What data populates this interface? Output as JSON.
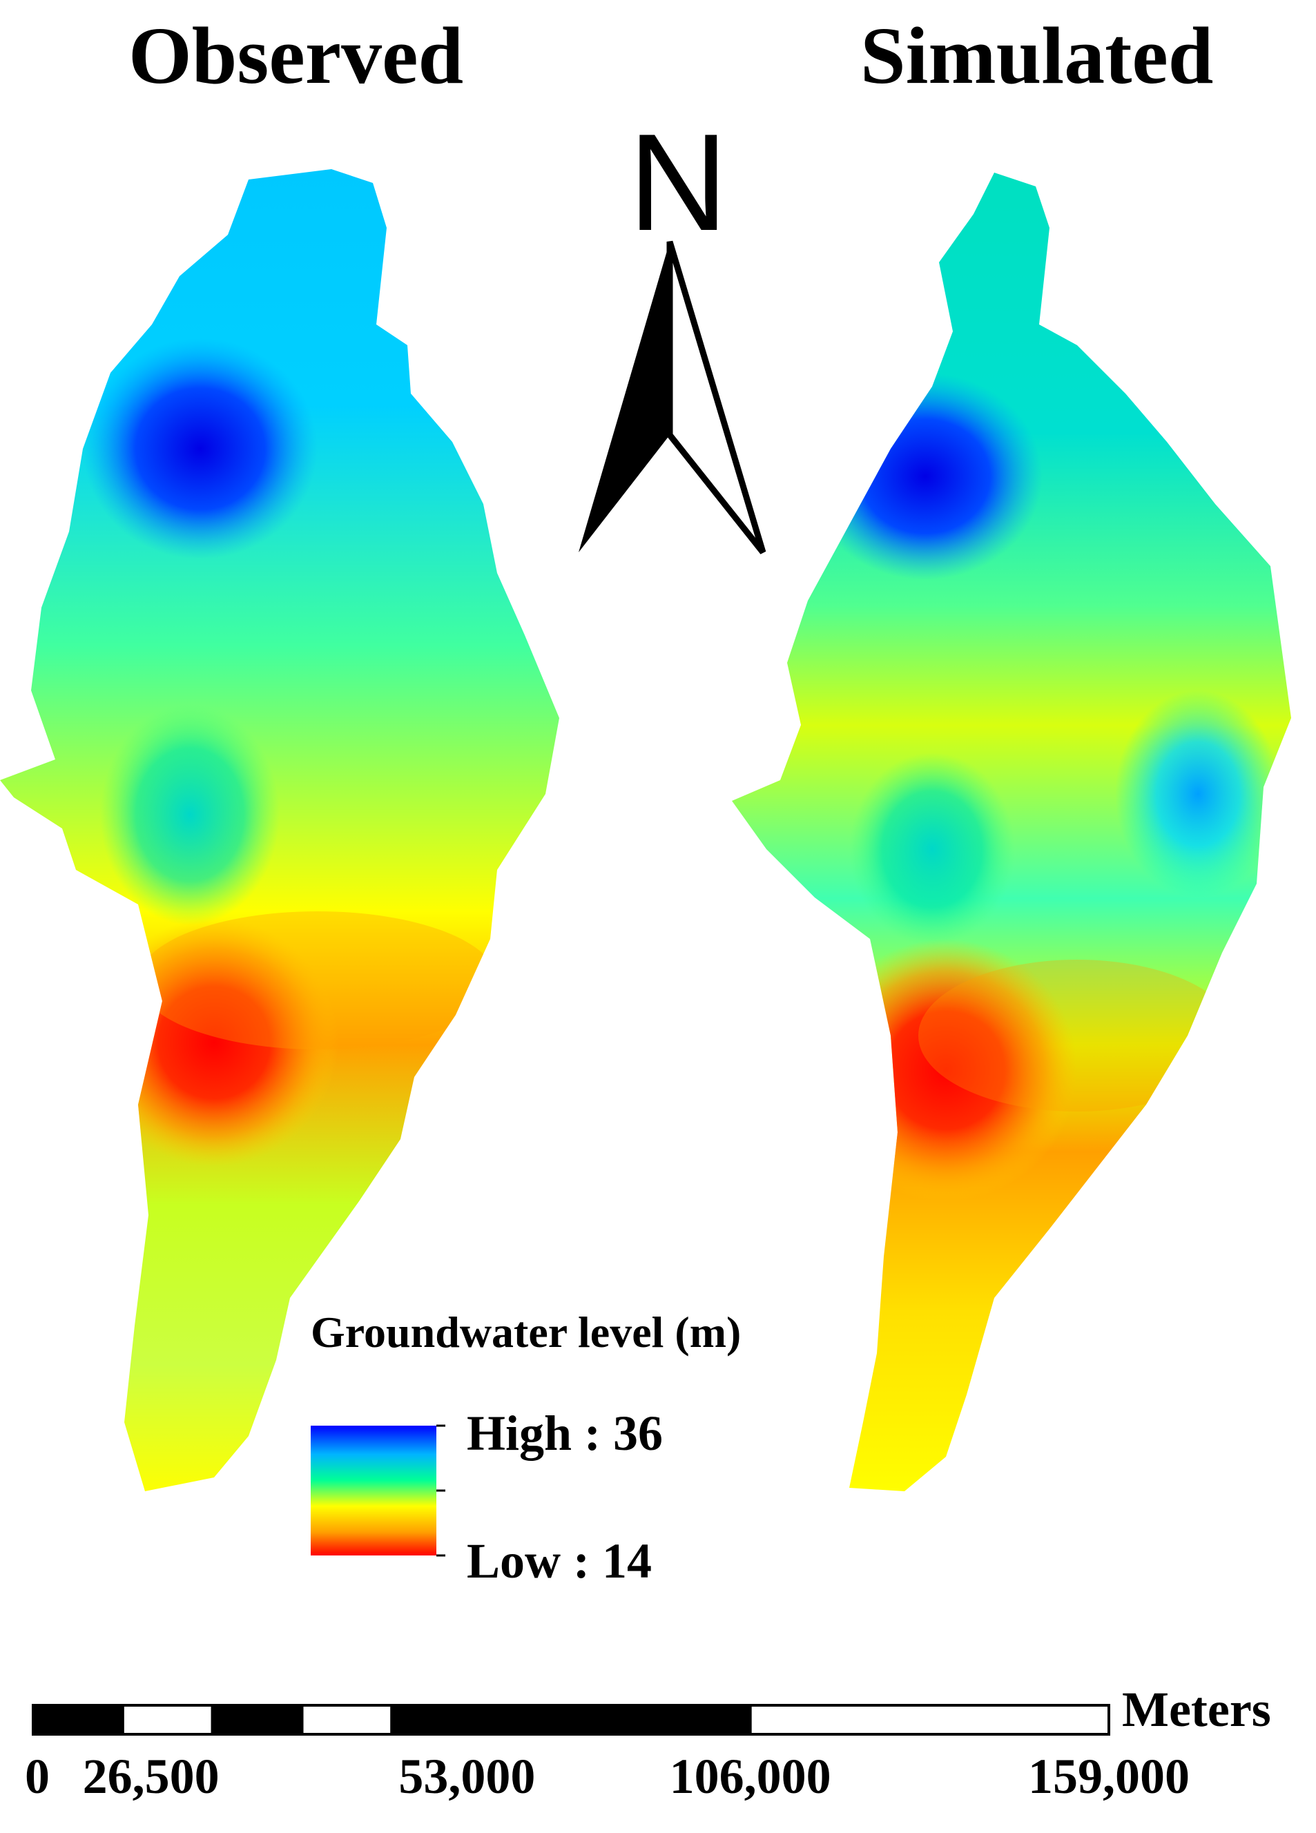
{
  "maps": {
    "observed_title": "Observed",
    "simulated_title": "Simulated"
  },
  "north_arrow": {
    "label": "N"
  },
  "legend": {
    "title": "Groundwater level (m)",
    "high_label": "High : 36",
    "low_label": "Low : 14",
    "high_value": 36,
    "low_value": 14,
    "colors": [
      "#0000ff",
      "#00c8ff",
      "#00ff96",
      "#ffff00",
      "#ffa000",
      "#ff0000"
    ]
  },
  "scale_bar": {
    "unit": "Meters",
    "ticks": [
      "0",
      "26,500",
      "53,000",
      "106,000",
      "159,000"
    ],
    "tick_values": [
      0,
      26500,
      53000,
      106000,
      159000
    ]
  }
}
